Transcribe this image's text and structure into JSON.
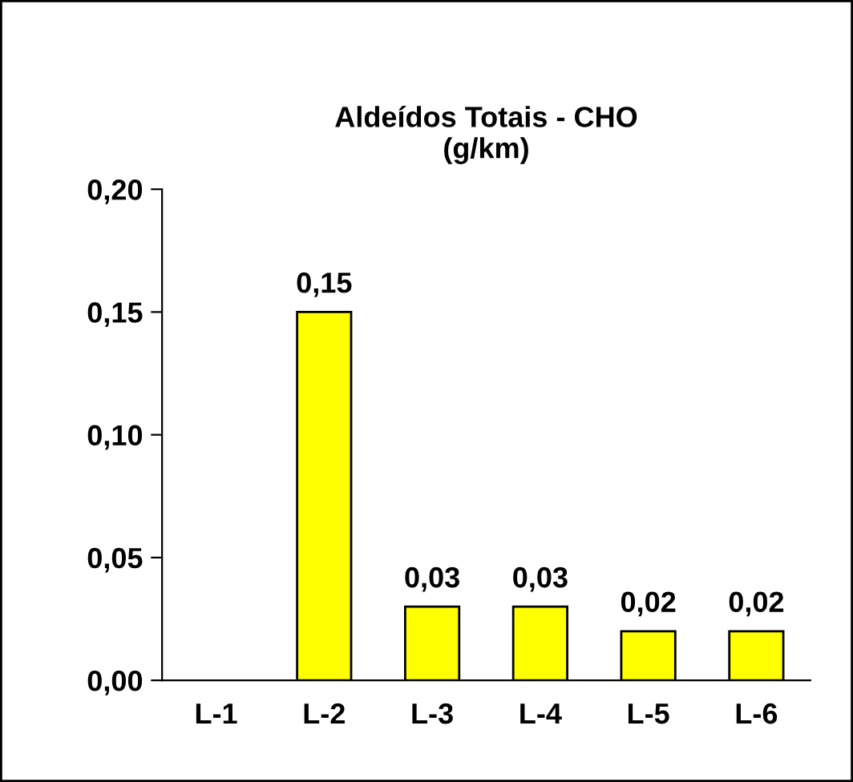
{
  "chart_data": {
    "type": "bar",
    "title": "Aldeídos Totais - CHO\n(g/km)",
    "categories": [
      "L-1",
      "L-2",
      "L-3",
      "L-4",
      "L-5",
      "L-6"
    ],
    "values": [
      null,
      0.15,
      0.03,
      0.03,
      0.02,
      0.02
    ],
    "value_labels": [
      null,
      "0,15",
      "0,03",
      "0,03",
      "0,02",
      "0,02"
    ],
    "color": "#ffff00",
    "ylim": [
      0,
      0.2
    ],
    "yticks": [
      {
        "value": 0,
        "label": "0,00"
      },
      {
        "value": 0.05,
        "label": "0,05"
      },
      {
        "value": 0.1,
        "label": "0,10"
      },
      {
        "value": 0.15,
        "label": "0,15"
      },
      {
        "value": 0.2,
        "label": "0,20"
      }
    ],
    "grid": false,
    "legend": false
  }
}
